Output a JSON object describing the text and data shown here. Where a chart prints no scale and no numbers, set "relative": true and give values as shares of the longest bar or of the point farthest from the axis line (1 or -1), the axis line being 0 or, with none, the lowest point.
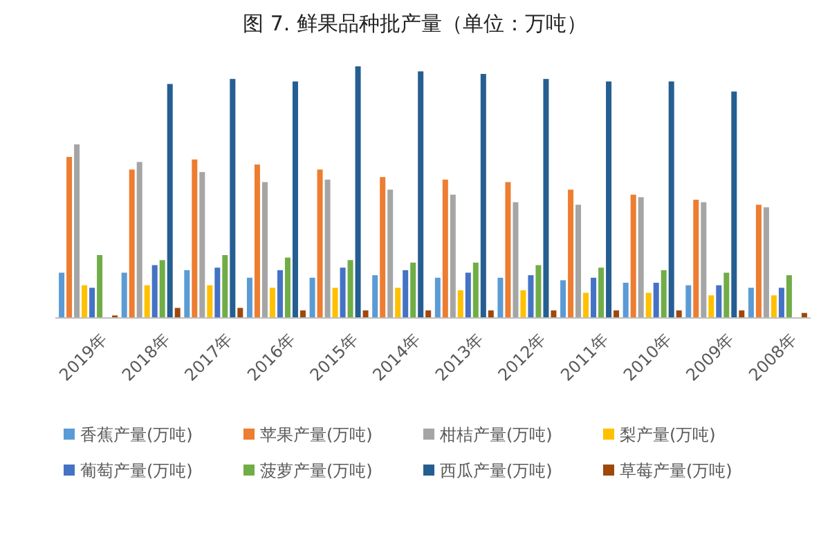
{
  "chart_data": {
    "type": "bar",
    "title": "图 7. 鲜果品种批产量（单位：万吨）",
    "relative": true,
    "legend": "bottom",
    "categories": [
      "2019年",
      "2018年",
      "2017年",
      "2016年",
      "2015年",
      "2014年",
      "2013年",
      "2012年",
      "2011年",
      "2010年",
      "2009年",
      "2008年"
    ],
    "series": [
      {
        "name": "香蕉产量(万吨)",
        "color": "#5b9bd5",
        "values": [
          0.18,
          0.18,
          0.19,
          0.16,
          0.16,
          0.17,
          0.16,
          0.16,
          0.15,
          0.14,
          0.13,
          0.12
        ]
      },
      {
        "name": "苹果产量(万吨)",
        "color": "#ed7d31",
        "values": [
          0.64,
          0.59,
          0.63,
          0.61,
          0.59,
          0.56,
          0.55,
          0.54,
          0.51,
          0.49,
          0.47,
          0.45
        ]
      },
      {
        "name": "柑桔产量(万吨)",
        "color": "#a5a5a5",
        "values": [
          0.69,
          0.62,
          0.58,
          0.54,
          0.55,
          0.51,
          0.49,
          0.46,
          0.45,
          0.48,
          0.46,
          0.44
        ]
      },
      {
        "name": "梨产量(万吨)",
        "color": "#ffc000",
        "values": [
          0.13,
          0.13,
          0.13,
          0.12,
          0.12,
          0.12,
          0.11,
          0.11,
          0.1,
          0.1,
          0.09,
          0.09
        ]
      },
      {
        "name": "葡萄产量(万吨)",
        "color": "#4472c4",
        "values": [
          0.12,
          0.21,
          0.2,
          0.19,
          0.2,
          0.19,
          0.18,
          0.17,
          0.16,
          0.14,
          0.13,
          0.12
        ]
      },
      {
        "name": "菠萝产量(万吨)",
        "color": "#70ad47",
        "values": [
          0.25,
          0.23,
          0.25,
          0.24,
          0.23,
          0.22,
          0.22,
          0.21,
          0.2,
          0.19,
          0.18,
          0.17
        ]
      },
      {
        "name": "西瓜产量(万吨)",
        "color": "#255e91",
        "values": [
          null,
          0.93,
          0.95,
          0.94,
          1,
          0.98,
          0.97,
          0.95,
          0.94,
          0.94,
          0.9,
          null
        ]
      },
      {
        "name": "草莓产量(万吨)",
        "color": "#9e480e",
        "values": [
          0.01,
          0.04,
          0.04,
          0.03,
          0.03,
          0.03,
          0.03,
          0.03,
          0.03,
          0.03,
          0.03,
          0.02
        ]
      }
    ]
  }
}
